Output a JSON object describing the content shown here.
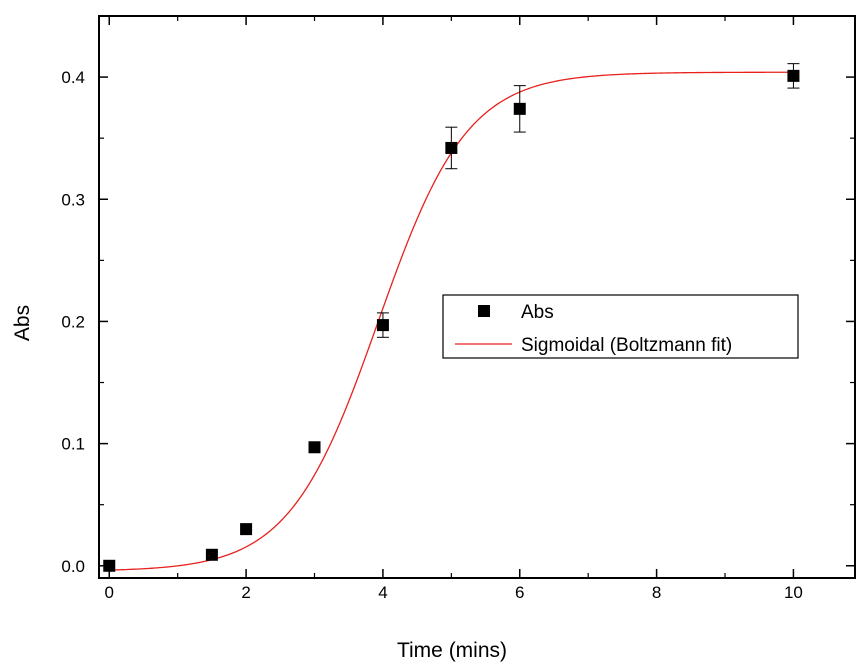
{
  "chart_data": {
    "type": "scatter",
    "title": "",
    "xlabel": "Time (mins)",
    "ylabel": "Abs",
    "xlim": [
      -0.15,
      10.9
    ],
    "ylim": [
      -0.01,
      0.45
    ],
    "x_ticks": [
      0,
      2,
      4,
      6,
      8,
      10
    ],
    "y_ticks": [
      0.0,
      0.1,
      0.2,
      0.3,
      0.4
    ],
    "x_tick_labels": [
      "0",
      "2",
      "4",
      "6",
      "8",
      "10"
    ],
    "y_tick_labels": [
      "0.0",
      "0.1",
      "0.2",
      "0.3",
      "0.4"
    ],
    "grid": false,
    "legend_position": "right-middle",
    "series": [
      {
        "name": "Abs",
        "kind": "scatter",
        "marker": "square",
        "color": "#000000",
        "points": [
          {
            "x": 0,
            "y": 0.0,
            "err": 0
          },
          {
            "x": 1.5,
            "y": 0.009,
            "err": 0
          },
          {
            "x": 2,
            "y": 0.03,
            "err": 0
          },
          {
            "x": 3,
            "y": 0.097,
            "err": 0
          },
          {
            "x": 4,
            "y": 0.197,
            "err": 0.01
          },
          {
            "x": 5,
            "y": 0.342,
            "err": 0.017
          },
          {
            "x": 6,
            "y": 0.374,
            "err": 0.019
          },
          {
            "x": 10,
            "y": 0.401,
            "err": 0.01
          }
        ]
      },
      {
        "name": "Sigmoidal (Boltzmann fit)",
        "kind": "line",
        "color": "#e8211d",
        "fit": {
          "model": "boltzmann",
          "A1": -0.0045,
          "A2": 0.404,
          "x0": 3.93,
          "dx": 0.65,
          "x_from": 0,
          "x_to": 10
        }
      }
    ]
  }
}
